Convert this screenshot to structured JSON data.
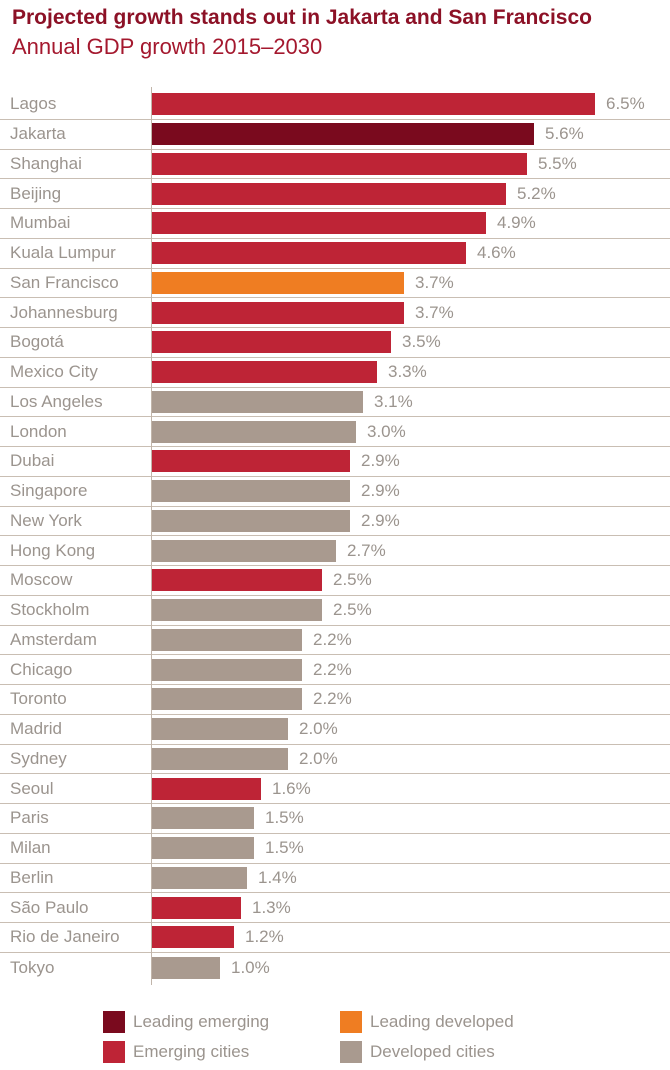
{
  "header": {
    "title": "Projected growth stands out in Jakarta and San Francisco",
    "subtitle": "Annual GDP growth 2015–2030"
  },
  "colors": {
    "leading_emerging": "#7A0A1E",
    "emerging": "#BE2436",
    "leading_developed": "#EF7D22",
    "developed": "#A99A8F",
    "grid": "#C9BEB3",
    "axis_line": "#C1B5AA",
    "label_text": "#9B948E",
    "title_text": "#8C1126",
    "subtitle_text": "#A4182E"
  },
  "chart_data": {
    "type": "bar",
    "orientation": "horizontal",
    "title": "Projected growth stands out in Jakarta and San Francisco",
    "subtitle": "Annual GDP growth 2015–2030",
    "xlabel": "",
    "ylabel": "",
    "value_suffix": "%",
    "xlim": [
      0,
      6.8
    ],
    "grid": false,
    "legend_position": "bottom",
    "items": [
      {
        "city": "Lagos",
        "value": 6.5,
        "label": "6.5%",
        "category": "emerging"
      },
      {
        "city": "Jakarta",
        "value": 5.6,
        "label": "5.6%",
        "category": "leading_emerging"
      },
      {
        "city": "Shanghai",
        "value": 5.5,
        "label": "5.5%",
        "category": "emerging"
      },
      {
        "city": "Beijing",
        "value": 5.2,
        "label": "5.2%",
        "category": "emerging"
      },
      {
        "city": "Mumbai",
        "value": 4.9,
        "label": "4.9%",
        "category": "emerging"
      },
      {
        "city": "Kuala Lumpur",
        "value": 4.6,
        "label": "4.6%",
        "category": "emerging"
      },
      {
        "city": "San Francisco",
        "value": 3.7,
        "label": "3.7%",
        "category": "leading_developed"
      },
      {
        "city": "Johannesburg",
        "value": 3.7,
        "label": "3.7%",
        "category": "emerging"
      },
      {
        "city": "Bogotá",
        "value": 3.5,
        "label": "3.5%",
        "category": "emerging"
      },
      {
        "city": "Mexico City",
        "value": 3.3,
        "label": "3.3%",
        "category": "emerging"
      },
      {
        "city": "Los Angeles",
        "value": 3.1,
        "label": "3.1%",
        "category": "developed"
      },
      {
        "city": "London",
        "value": 3.0,
        "label": "3.0%",
        "category": "developed"
      },
      {
        "city": "Dubai",
        "value": 2.9,
        "label": "2.9%",
        "category": "emerging"
      },
      {
        "city": "Singapore",
        "value": 2.9,
        "label": "2.9%",
        "category": "developed"
      },
      {
        "city": "New York",
        "value": 2.9,
        "label": "2.9%",
        "category": "developed"
      },
      {
        "city": "Hong Kong",
        "value": 2.7,
        "label": "2.7%",
        "category": "developed"
      },
      {
        "city": "Moscow",
        "value": 2.5,
        "label": "2.5%",
        "category": "emerging"
      },
      {
        "city": "Stockholm",
        "value": 2.5,
        "label": "2.5%",
        "category": "developed"
      },
      {
        "city": "Amsterdam",
        "value": 2.2,
        "label": "2.2%",
        "category": "developed"
      },
      {
        "city": "Chicago",
        "value": 2.2,
        "label": "2.2%",
        "category": "developed"
      },
      {
        "city": "Toronto",
        "value": 2.2,
        "label": "2.2%",
        "category": "developed"
      },
      {
        "city": "Madrid",
        "value": 2.0,
        "label": "2.0%",
        "category": "developed"
      },
      {
        "city": "Sydney",
        "value": 2.0,
        "label": "2.0%",
        "category": "developed"
      },
      {
        "city": "Seoul",
        "value": 1.6,
        "label": "1.6%",
        "category": "emerging"
      },
      {
        "city": "Paris",
        "value": 1.5,
        "label": "1.5%",
        "category": "developed"
      },
      {
        "city": "Milan",
        "value": 1.5,
        "label": "1.5%",
        "category": "developed"
      },
      {
        "city": "Berlin",
        "value": 1.4,
        "label": "1.4%",
        "category": "developed"
      },
      {
        "city": "São Paulo",
        "value": 1.3,
        "label": "1.3%",
        "category": "emerging"
      },
      {
        "city": "Rio de Janeiro",
        "value": 1.2,
        "label": "1.2%",
        "category": "emerging"
      },
      {
        "city": "Tokyo",
        "value": 1.0,
        "label": "1.0%",
        "category": "developed"
      }
    ]
  },
  "legend": {
    "items": [
      {
        "label": "Leading emerging",
        "category": "leading_emerging"
      },
      {
        "label": "Emerging cities",
        "category": "emerging"
      },
      {
        "label": "Leading developed",
        "category": "leading_developed"
      },
      {
        "label": "Developed cities",
        "category": "developed"
      }
    ]
  }
}
